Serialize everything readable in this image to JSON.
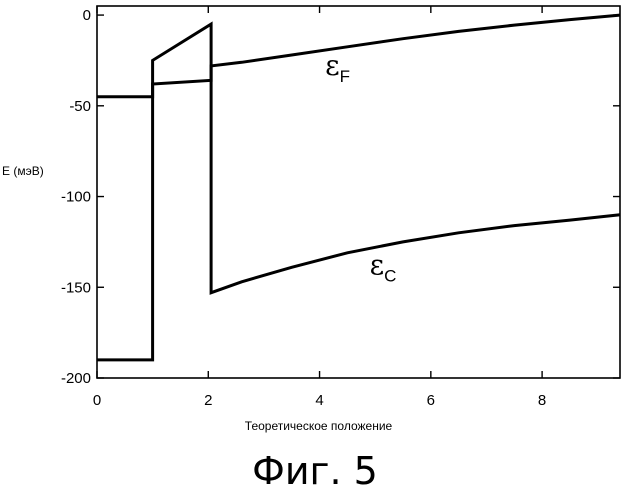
{
  "chart_data": {
    "type": "line",
    "title": "",
    "xlabel": "Теоретическое положение",
    "ylabel": "E (мэВ)",
    "xlim": [
      0,
      9.4
    ],
    "ylim": [
      -200,
      5
    ],
    "xticks": [
      0,
      2,
      4,
      6,
      8
    ],
    "yticks": [
      0,
      -50,
      -100,
      -150,
      -200
    ],
    "grid": false,
    "legend": "none",
    "series": [
      {
        "x": [
          0,
          1.0,
          1.0,
          2.05,
          2.05,
          2.6,
          3.5,
          4.5,
          5.5,
          6.5,
          7.5,
          8.5,
          9.4
        ],
        "values": [
          -45,
          -45,
          -38,
          -36,
          -28,
          -26,
          -22,
          -17.5,
          -13,
          -9,
          -5.5,
          -2.5,
          0
        ]
      },
      {
        "x": [
          0,
          1.0,
          1.0,
          2.05,
          2.05,
          2.6,
          3.5,
          4.5,
          5.5,
          6.5,
          7.5,
          8.5,
          9.4
        ],
        "values": [
          -190,
          -190,
          -25,
          -5,
          -153,
          -147,
          -139,
          -131,
          -125,
          -120,
          -116,
          -113,
          -110
        ]
      }
    ],
    "annotations": [
      {
        "text": "ε",
        "subscript": "F",
        "x": 4.1,
        "y": -33
      },
      {
        "text": "ε",
        "subscript": "C",
        "x": 4.9,
        "y": -143
      }
    ]
  },
  "figure": {
    "caption": "Фиг. 5"
  }
}
